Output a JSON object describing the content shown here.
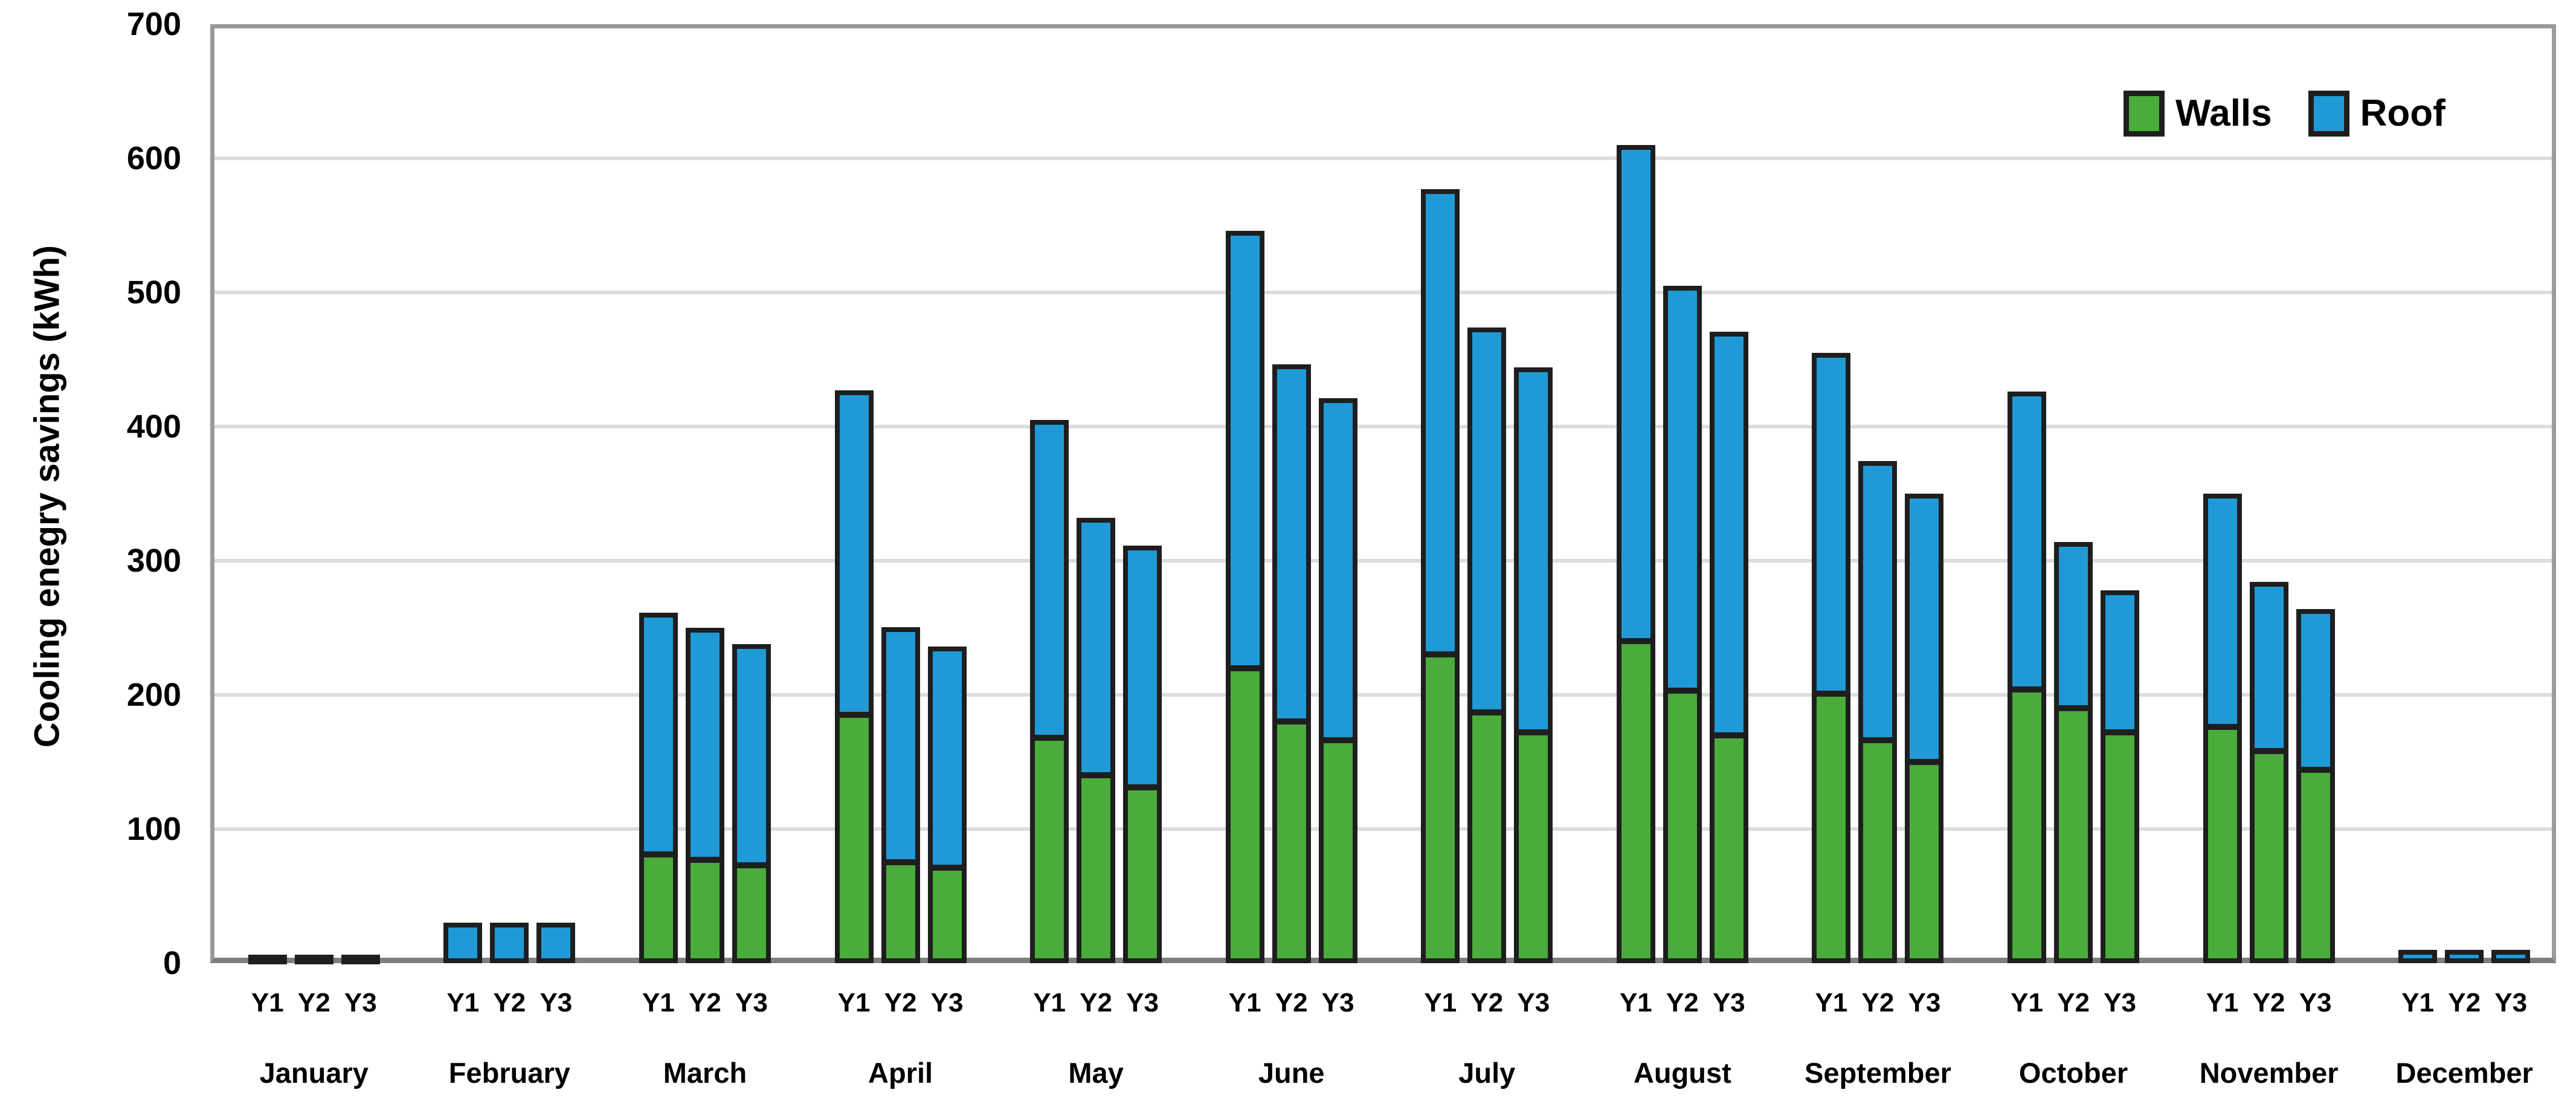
{
  "chart_data": {
    "type": "bar",
    "stacked": true,
    "title": "",
    "xlabel": "",
    "ylabel": "Cooling enegry savings (kWh)",
    "ylim": [
      0,
      700
    ],
    "yticks": [
      0,
      100,
      200,
      300,
      400,
      500,
      600,
      700
    ],
    "grid": "horizontal",
    "gridline_color": "#dcdcdc",
    "frame_color": "#9a9a9a",
    "bar_border_color": "#1e1e1e",
    "legend_position": "top-right",
    "categories": [
      "January",
      "February",
      "March",
      "April",
      "May",
      "June",
      "July",
      "August",
      "September",
      "October",
      "November",
      "December"
    ],
    "sub_categories": [
      "Y1",
      "Y2",
      "Y3"
    ],
    "series": [
      {
        "name": "Walls",
        "color": "#4aac3b",
        "values": [
          [
            0,
            0,
            0
          ],
          [
            0,
            0,
            0
          ],
          [
            81,
            77,
            73
          ],
          [
            185,
            75,
            71
          ],
          [
            168,
            140,
            131
          ],
          [
            220,
            180,
            166
          ],
          [
            230,
            187,
            172
          ],
          [
            240,
            203,
            170
          ],
          [
            201,
            166,
            150
          ],
          [
            204,
            190,
            172
          ],
          [
            176,
            158,
            144
          ],
          [
            0,
            0,
            0
          ]
        ]
      },
      {
        "name": "Roof",
        "color": "#209ad7",
        "values": [
          [
            5,
            5,
            5
          ],
          [
            30,
            30,
            30
          ],
          [
            180,
            173,
            165
          ],
          [
            242,
            175,
            165
          ],
          [
            237,
            192,
            180
          ],
          [
            326,
            266,
            255
          ],
          [
            347,
            287,
            272
          ],
          [
            370,
            302,
            301
          ],
          [
            254,
            208,
            200
          ],
          [
            222,
            124,
            106
          ],
          [
            174,
            126,
            120
          ],
          [
            10,
            10,
            10
          ]
        ]
      }
    ]
  },
  "legend": {
    "walls_label": "Walls",
    "roof_label": "Roof"
  }
}
